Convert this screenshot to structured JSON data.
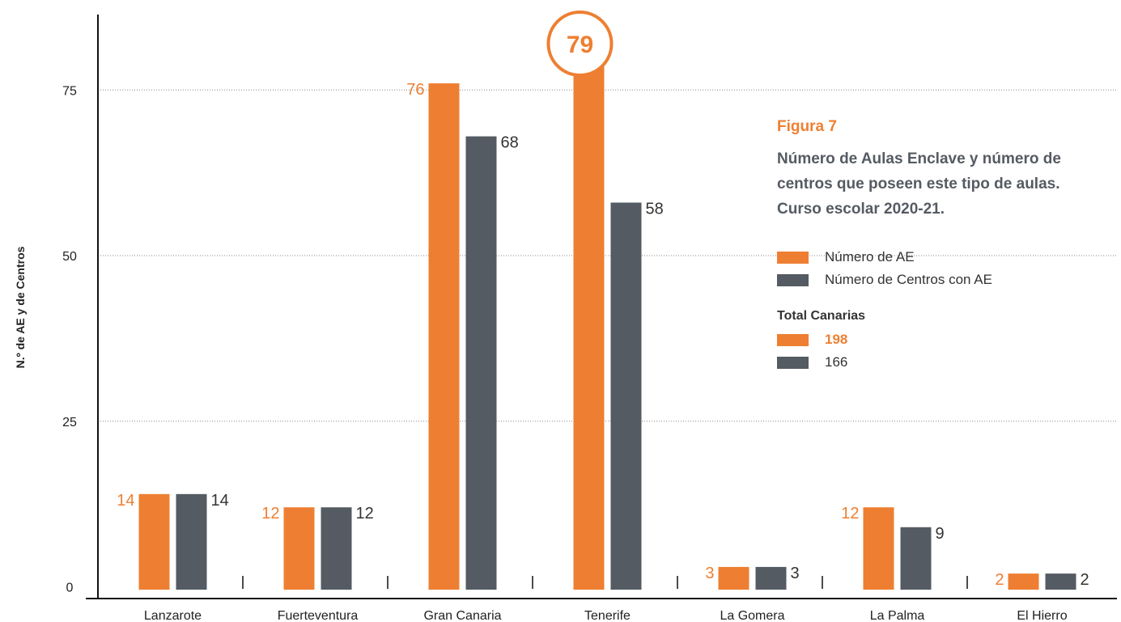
{
  "colors": {
    "orange": "#ee7f32",
    "gray": "#555b62",
    "axis": "#111111",
    "text": "#222222"
  },
  "figure": {
    "label": "Figura 7",
    "title_lines": [
      "Número de Aulas Enclave y número de",
      "centros que poseen este tipo de aulas.",
      "Curso escolar 2020-21."
    ]
  },
  "legend": [
    {
      "name": "Número de AE",
      "color": "#ee7f32"
    },
    {
      "name": "Número de Centros con AE",
      "color": "#555b62"
    }
  ],
  "totals": {
    "title": "Total Canarias",
    "values": [
      {
        "value": "198",
        "color": "#ee7f32"
      },
      {
        "value": "166",
        "color": "#555b62"
      }
    ]
  },
  "chart_data": {
    "type": "bar",
    "ylabel": "N.º de AE y de Centros",
    "xlabel": "",
    "categories": [
      "Lanzarote",
      "Fuerteventura",
      "Gran Canaria",
      "Tenerife",
      "La Gomera",
      "La Palma",
      "El Hierro"
    ],
    "series": [
      {
        "name": "Número de AE",
        "color": "#ee7f32",
        "values": [
          14,
          12,
          76,
          79,
          3,
          12,
          2
        ]
      },
      {
        "name": "Número de Centros con AE",
        "color": "#555b62",
        "values": [
          14,
          12,
          68,
          58,
          3,
          9,
          2
        ]
      }
    ],
    "data_labels": [
      [
        "14",
        "12",
        "76",
        "79",
        "3",
        "12",
        "2"
      ],
      [
        "14",
        "12",
        "68",
        "58",
        "3",
        "9",
        "2"
      ]
    ],
    "highlight": {
      "category_index": 3,
      "series_index": 0,
      "label": "79"
    },
    "yticks": [
      0,
      25,
      50,
      75
    ],
    "ylim": [
      0,
      80
    ],
    "grid": true,
    "legend_position": "right"
  }
}
